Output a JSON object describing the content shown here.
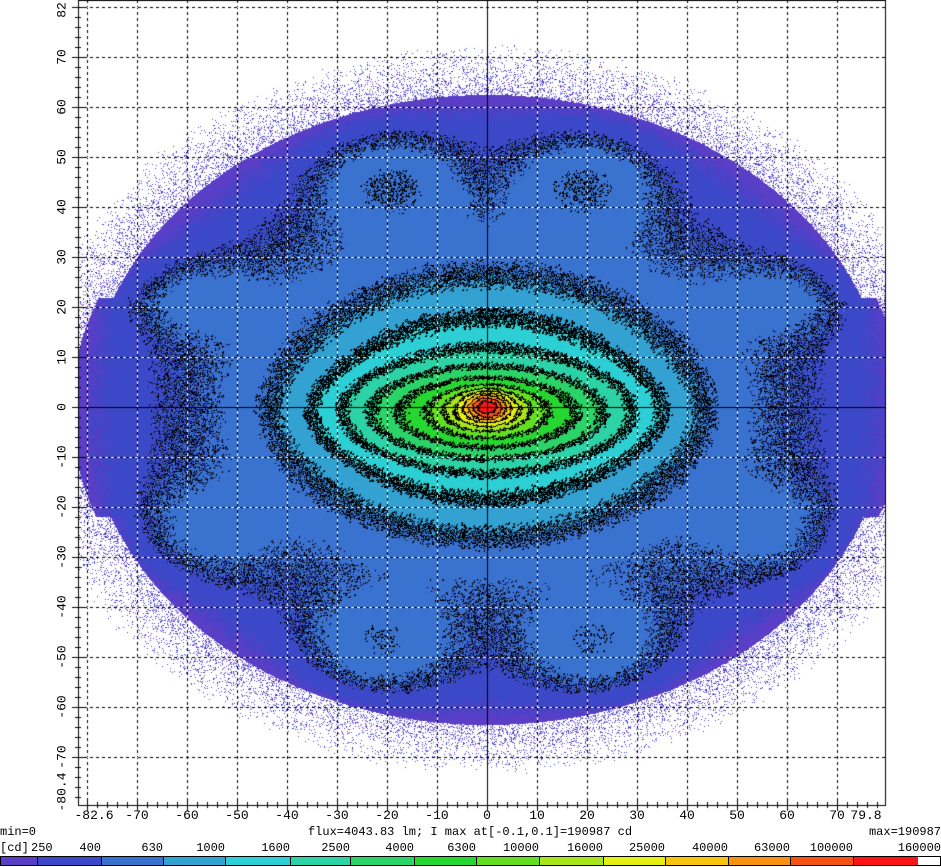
{
  "chart_data": {
    "type": "heatmap",
    "title": "",
    "xlim": [
      -82.6,
      79.8
    ],
    "ylim": [
      -80.4,
      82
    ],
    "x_ticks": [
      "-82.6",
      "-70",
      "-60",
      "-50",
      "-40",
      "-30",
      "-20",
      "-10",
      "0",
      "10",
      "20",
      "30",
      "40",
      "50",
      "60",
      "70",
      "79.8"
    ],
    "y_ticks": [
      "82",
      "70",
      "60",
      "50",
      "40",
      "30",
      "20",
      "10",
      "0",
      "-10",
      "-20",
      "-30",
      "-40",
      "-50",
      "-60",
      "-70",
      "-80.4"
    ],
    "grid": true,
    "grid_step_deg": 10,
    "unit_label": "[cd]",
    "min_label": "min=0",
    "max_label": "max=190987",
    "info_label": "flux=4043.83 lm; I max at[-0.1,0.1]=190987 cd",
    "flux_lm": 4043.83,
    "peak": {
      "x": -0.1,
      "y": 0.1,
      "value_cd": 190987
    },
    "min_value": 0,
    "max_value": 190987,
    "colorbar_levels": [
      250,
      400,
      630,
      1000,
      1600,
      2500,
      4000,
      6300,
      10000,
      16000,
      25000,
      40000,
      63000,
      100000,
      160000
    ],
    "colorbar_labels": [
      "250",
      "400",
      "630",
      "1000",
      "1600",
      "2500",
      "4000",
      "6300",
      "10000",
      "16000",
      "25000",
      "40000",
      "63000",
      "100000",
      "160000"
    ],
    "colorbar_colors": [
      "#5a3ec6",
      "#3b48c8",
      "#3a72cf",
      "#33a2d2",
      "#2ccfd4",
      "#2bd3a6",
      "#2bd468",
      "#26d631",
      "#62df20",
      "#a6e61a",
      "#e6f010",
      "#f8c410",
      "#f79212",
      "#f75214",
      "#fd1414"
    ],
    "contours": true
  }
}
